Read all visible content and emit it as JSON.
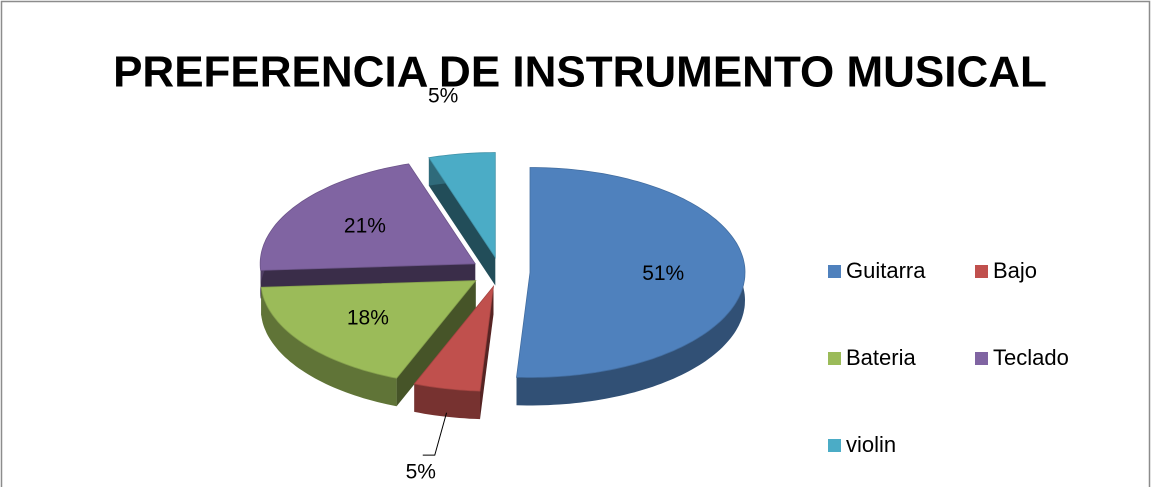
{
  "chart_data": {
    "type": "pie",
    "title": "PREFERENCIA DE INSTRUMENTO MUSICAL",
    "categories": [
      "Guitarra",
      "Bajo",
      "Bateria",
      "Teclado",
      "violin"
    ],
    "values": [
      51,
      5,
      18,
      21,
      5
    ],
    "value_labels": [
      "51%",
      "5%",
      "18%",
      "21%",
      "5%"
    ],
    "colors": [
      "#4f81bd",
      "#c0504d",
      "#9bbb59",
      "#8064a2",
      "#4bacc6"
    ],
    "legend": "right"
  }
}
